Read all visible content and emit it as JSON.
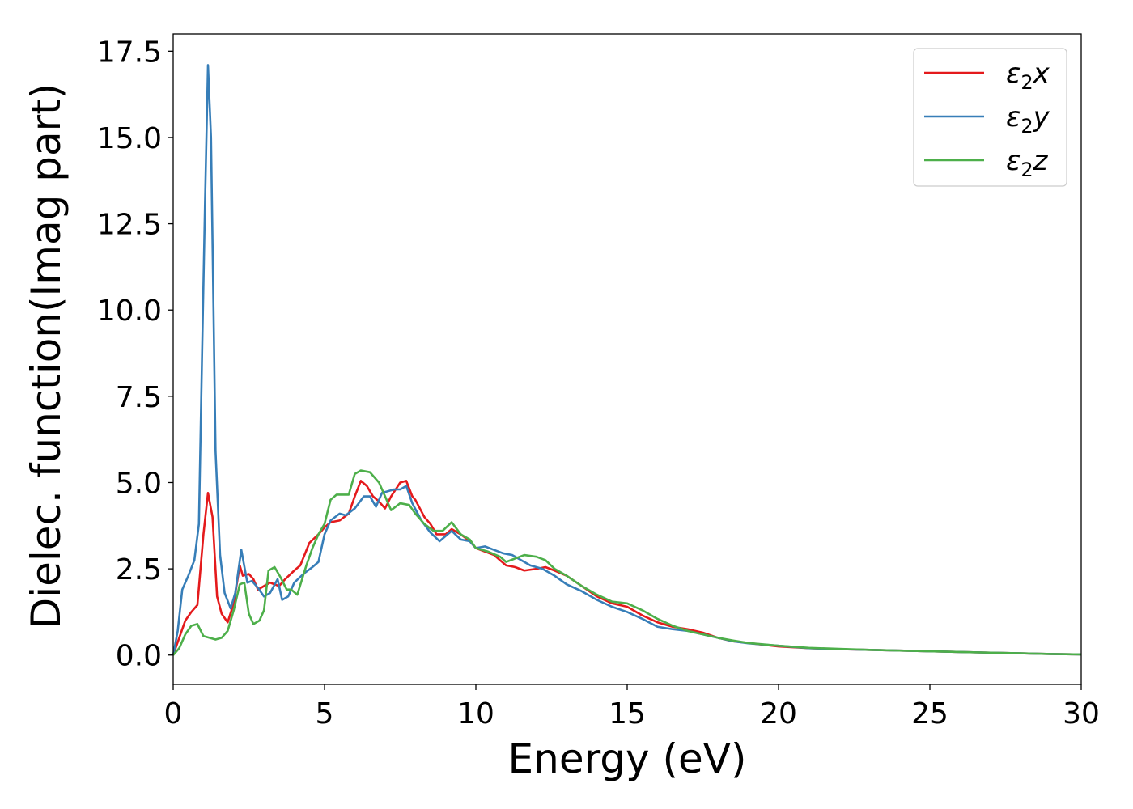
{
  "chart_data": {
    "type": "line",
    "xlabel": "Energy (eV)",
    "ylabel": "Dielec. function(Imag part)",
    "xlim": [
      0,
      30
    ],
    "ylim": [
      -0.85,
      18.0
    ],
    "xticks": [
      0,
      5,
      10,
      15,
      20,
      25,
      30
    ],
    "xtick_labels": [
      "0",
      "5",
      "10",
      "15",
      "20",
      "25",
      "30"
    ],
    "yticks": [
      0.0,
      2.5,
      5.0,
      7.5,
      10.0,
      12.5,
      15.0,
      17.5
    ],
    "ytick_labels": [
      "0.0",
      "2.5",
      "5.0",
      "7.5",
      "10.0",
      "12.5",
      "15.0",
      "17.5"
    ],
    "grid": false,
    "legend_position": "top-right",
    "series": [
      {
        "name": "ε₂x",
        "legend_base": "ε",
        "legend_sub": "2",
        "legend_tail": "x",
        "color": "#e41a1c",
        "x": [
          0,
          0.2,
          0.4,
          0.6,
          0.8,
          1.0,
          1.15,
          1.3,
          1.45,
          1.6,
          1.8,
          2.0,
          2.2,
          2.3,
          2.5,
          2.65,
          2.8,
          3.0,
          3.2,
          3.5,
          3.7,
          4.0,
          4.2,
          4.5,
          4.8,
          5.0,
          5.2,
          5.5,
          5.8,
          6.0,
          6.2,
          6.4,
          6.6,
          6.8,
          7.0,
          7.2,
          7.5,
          7.7,
          7.9,
          8.0,
          8.3,
          8.5,
          8.7,
          9.0,
          9.2,
          9.5,
          9.8,
          10.0,
          10.3,
          10.6,
          10.8,
          11.0,
          11.3,
          11.6,
          12.0,
          12.3,
          12.6,
          13.0,
          13.5,
          14.0,
          14.5,
          15.0,
          15.5,
          16.0,
          16.5,
          17.0,
          17.5,
          18.0,
          18.5,
          19.0,
          20.0,
          21.0,
          22.0,
          23.0,
          24.0,
          25.0,
          26.0,
          27.0,
          28.0,
          29.0,
          30.0
        ],
        "values": [
          0,
          0.5,
          1.0,
          1.25,
          1.45,
          3.5,
          4.7,
          4.0,
          1.7,
          1.2,
          0.95,
          1.5,
          2.6,
          2.3,
          2.35,
          2.2,
          1.9,
          2.0,
          2.1,
          2.0,
          2.2,
          2.45,
          2.6,
          3.25,
          3.5,
          3.7,
          3.85,
          3.9,
          4.1,
          4.6,
          5.05,
          4.9,
          4.6,
          4.45,
          4.25,
          4.6,
          5.0,
          5.05,
          4.6,
          4.5,
          4.0,
          3.8,
          3.5,
          3.5,
          3.65,
          3.5,
          3.3,
          3.1,
          3.0,
          2.9,
          2.75,
          2.6,
          2.55,
          2.45,
          2.5,
          2.55,
          2.45,
          2.3,
          2.0,
          1.7,
          1.5,
          1.4,
          1.15,
          0.95,
          0.82,
          0.75,
          0.65,
          0.5,
          0.4,
          0.35,
          0.25,
          0.2,
          0.17,
          0.15,
          0.13,
          0.11,
          0.09,
          0.07,
          0.05,
          0.03,
          0.02
        ]
      },
      {
        "name": "ε₂y",
        "legend_base": "ε",
        "legend_sub": "2",
        "legend_tail": "y",
        "color": "#377eb8",
        "x": [
          0,
          0.15,
          0.3,
          0.5,
          0.7,
          0.85,
          0.95,
          1.05,
          1.15,
          1.25,
          1.4,
          1.55,
          1.7,
          1.9,
          2.05,
          2.25,
          2.45,
          2.6,
          2.8,
          3.0,
          3.2,
          3.45,
          3.6,
          3.8,
          4.0,
          4.3,
          4.6,
          4.8,
          5.0,
          5.2,
          5.5,
          5.7,
          6.0,
          6.3,
          6.5,
          6.7,
          6.9,
          7.1,
          7.3,
          7.5,
          7.7,
          7.9,
          8.2,
          8.5,
          8.8,
          9.0,
          9.2,
          9.5,
          9.8,
          10.0,
          10.3,
          10.6,
          10.9,
          11.2,
          11.5,
          11.8,
          12.2,
          12.6,
          13.0,
          13.5,
          14.0,
          14.5,
          15.0,
          15.5,
          16.0,
          16.5,
          17.0,
          17.5,
          18.0,
          18.5,
          19.0,
          20.0,
          21.0,
          22.0,
          23.0,
          24.0,
          25.0,
          26.0,
          27.0,
          28.0,
          29.0,
          30.0
        ],
        "values": [
          0,
          0.7,
          1.9,
          2.3,
          2.75,
          3.8,
          8.5,
          13.0,
          17.1,
          15.0,
          5.9,
          2.9,
          1.8,
          1.35,
          1.8,
          3.05,
          2.1,
          2.15,
          1.95,
          1.7,
          1.8,
          2.2,
          1.6,
          1.7,
          2.1,
          2.35,
          2.55,
          2.7,
          3.5,
          3.9,
          4.1,
          4.05,
          4.25,
          4.6,
          4.6,
          4.3,
          4.7,
          4.75,
          4.8,
          4.8,
          4.9,
          4.4,
          3.9,
          3.55,
          3.3,
          3.45,
          3.6,
          3.35,
          3.3,
          3.1,
          3.15,
          3.05,
          2.95,
          2.9,
          2.75,
          2.6,
          2.5,
          2.3,
          2.05,
          1.85,
          1.6,
          1.4,
          1.25,
          1.05,
          0.82,
          0.75,
          0.7,
          0.6,
          0.5,
          0.4,
          0.34,
          0.27,
          0.2,
          0.17,
          0.15,
          0.13,
          0.11,
          0.09,
          0.07,
          0.05,
          0.03,
          0.02
        ]
      },
      {
        "name": "ε₂z",
        "legend_base": "ε",
        "legend_sub": "2",
        "legend_tail": "z",
        "color": "#4daf4a",
        "x": [
          0,
          0.2,
          0.4,
          0.6,
          0.8,
          1.0,
          1.2,
          1.4,
          1.6,
          1.8,
          2.0,
          2.2,
          2.35,
          2.5,
          2.65,
          2.85,
          3.0,
          3.15,
          3.35,
          3.55,
          3.75,
          3.9,
          4.1,
          4.4,
          4.6,
          4.8,
          5.0,
          5.2,
          5.4,
          5.8,
          6.0,
          6.2,
          6.5,
          6.8,
          7.0,
          7.2,
          7.5,
          7.8,
          8.0,
          8.3,
          8.6,
          8.9,
          9.2,
          9.5,
          9.8,
          10.0,
          10.4,
          10.8,
          11.0,
          11.3,
          11.6,
          12.0,
          12.3,
          12.6,
          13.0,
          13.5,
          14.0,
          14.5,
          15.0,
          15.5,
          16.0,
          16.5,
          17.0,
          17.5,
          18.0,
          18.5,
          19.0,
          20.0,
          21.0,
          22.0,
          23.0,
          24.0,
          25.0,
          26.0,
          27.0,
          28.0,
          29.0,
          30.0
        ],
        "values": [
          0,
          0.2,
          0.6,
          0.85,
          0.9,
          0.55,
          0.5,
          0.45,
          0.5,
          0.7,
          1.3,
          2.05,
          2.1,
          1.2,
          0.9,
          1.0,
          1.3,
          2.45,
          2.55,
          2.25,
          1.9,
          1.9,
          1.75,
          2.6,
          3.1,
          3.5,
          3.8,
          4.5,
          4.65,
          4.65,
          5.25,
          5.35,
          5.3,
          5.0,
          4.6,
          4.2,
          4.4,
          4.35,
          4.1,
          3.8,
          3.6,
          3.6,
          3.85,
          3.5,
          3.35,
          3.1,
          3.0,
          2.85,
          2.7,
          2.8,
          2.9,
          2.85,
          2.75,
          2.5,
          2.3,
          2.0,
          1.75,
          1.55,
          1.5,
          1.3,
          1.05,
          0.85,
          0.7,
          0.6,
          0.5,
          0.42,
          0.35,
          0.27,
          0.21,
          0.18,
          0.15,
          0.13,
          0.11,
          0.09,
          0.07,
          0.05,
          0.03,
          0.02
        ]
      }
    ]
  }
}
